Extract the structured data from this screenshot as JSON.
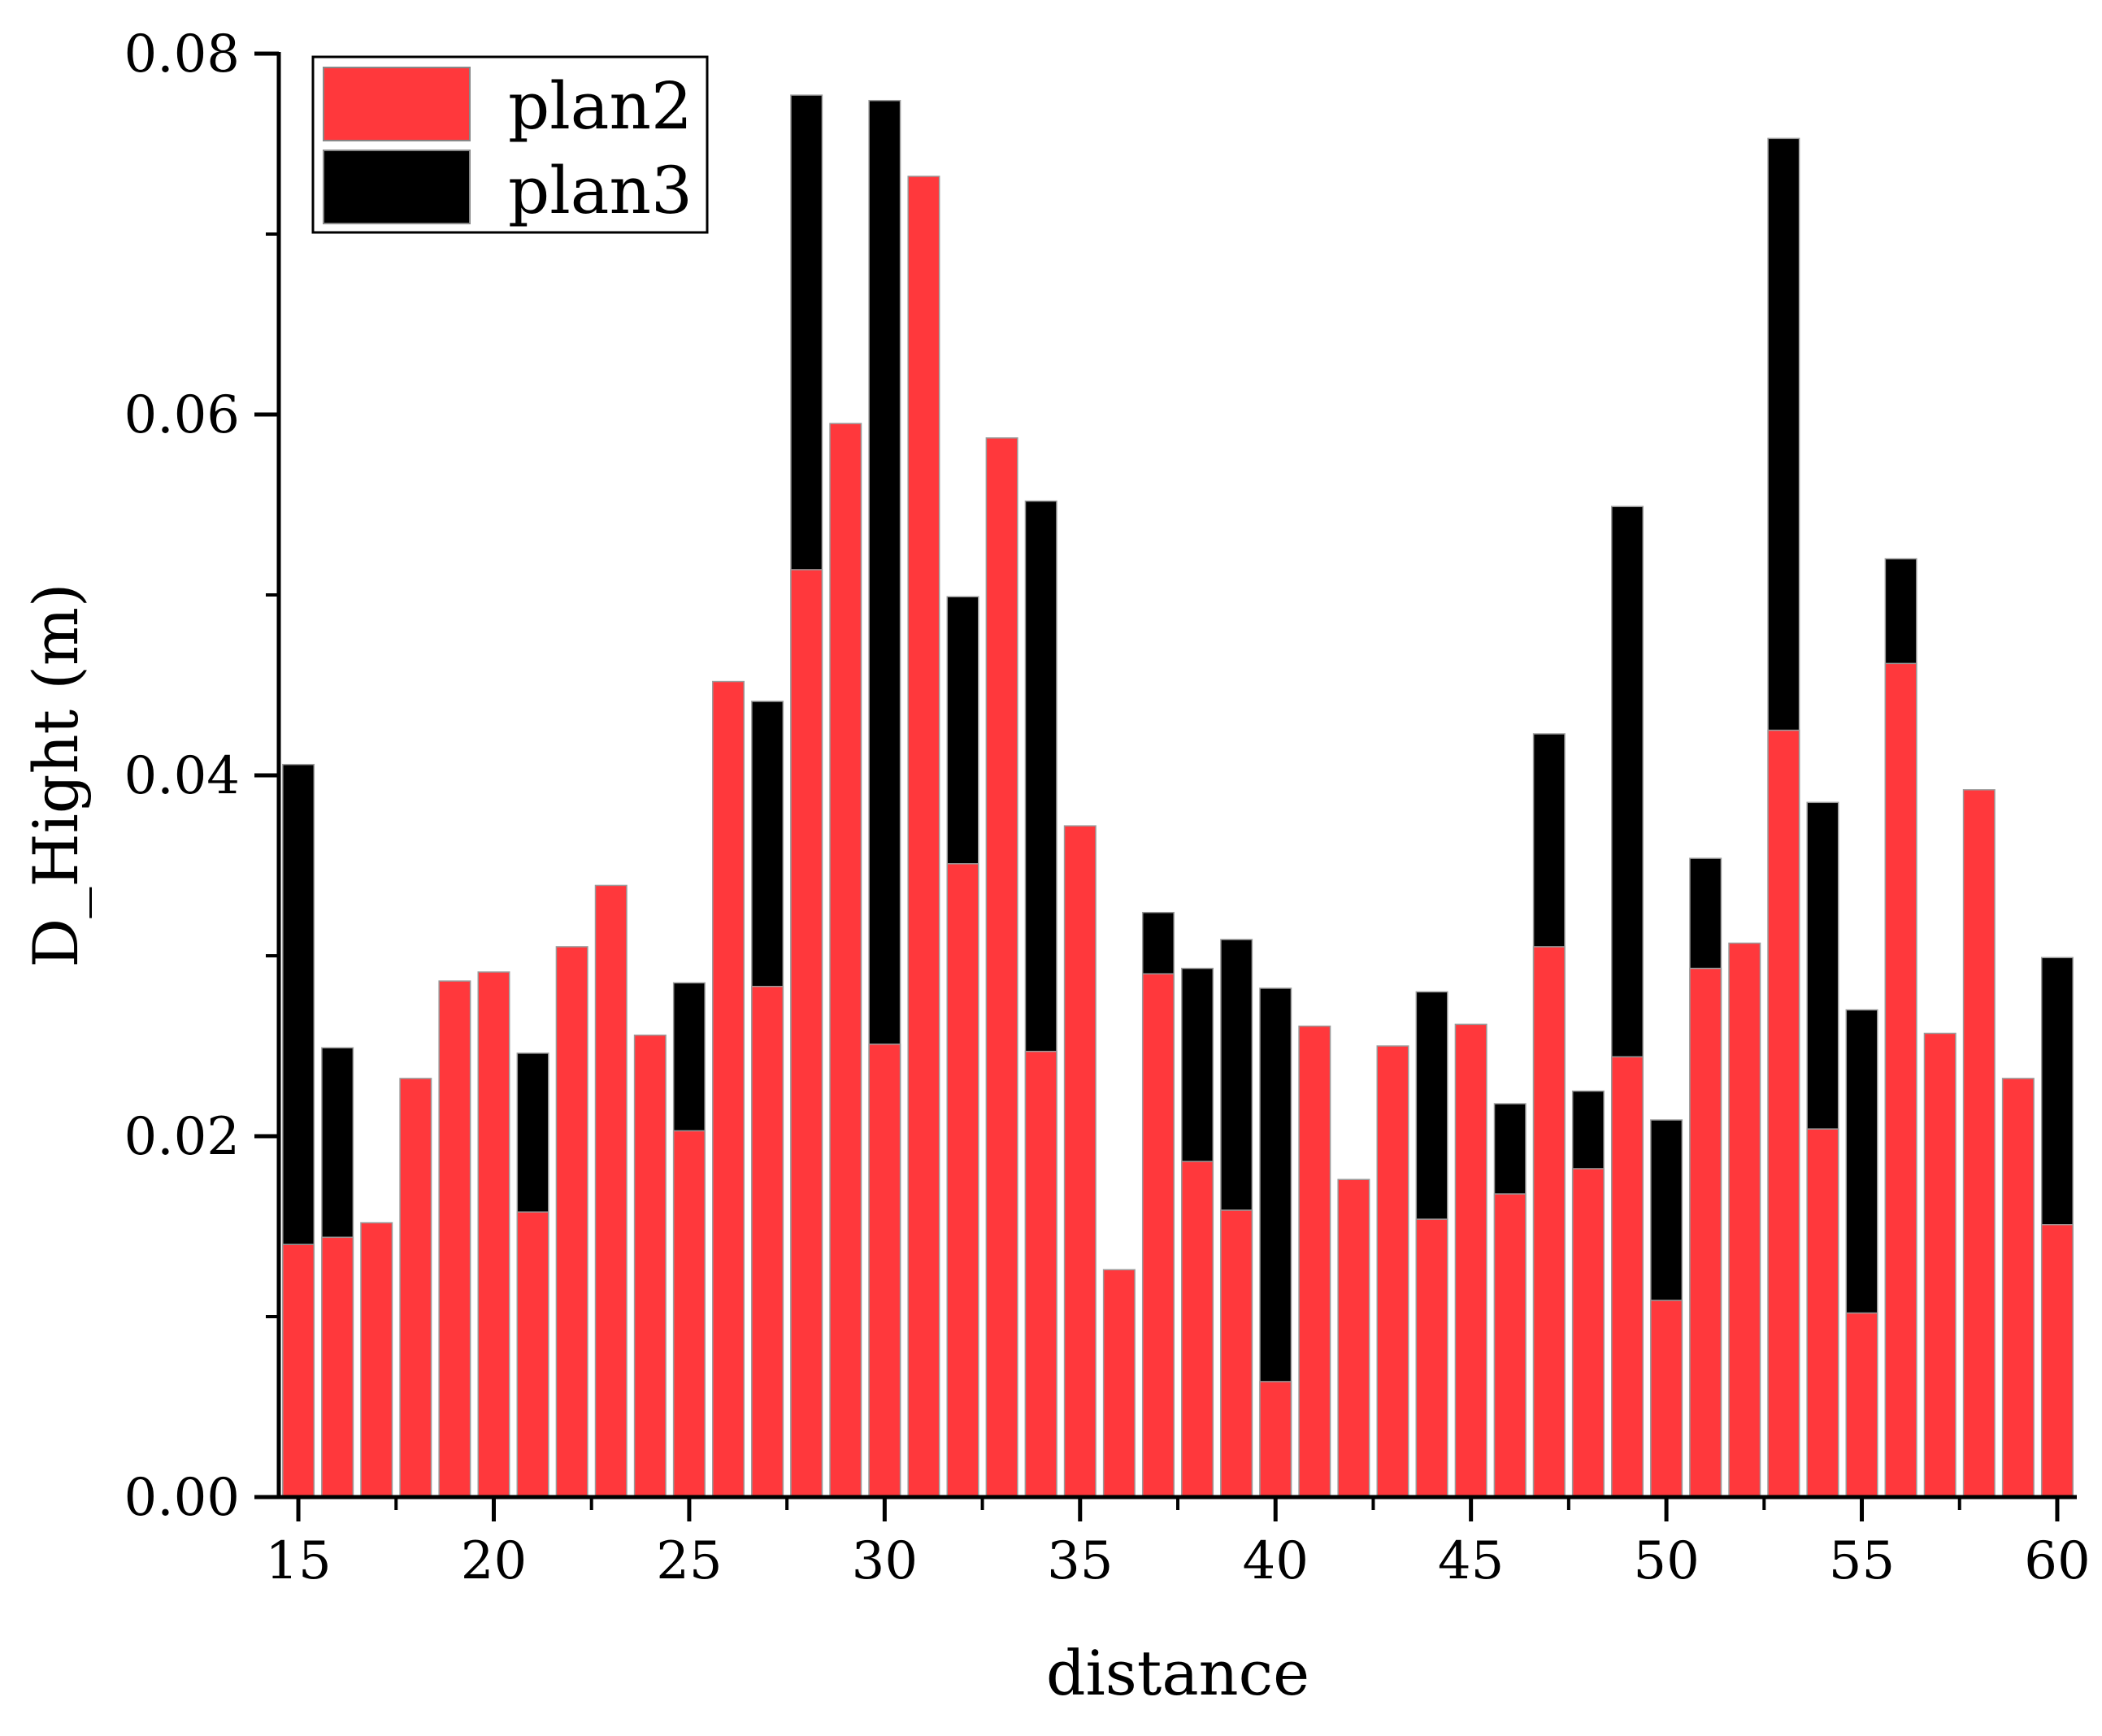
{
  "chart_data": {
    "type": "bar",
    "stacking": "overlay",
    "title": "",
    "xlabel": "distance",
    "ylabel": "D_Hight (m)",
    "x": [
      15,
      16,
      17,
      18,
      19,
      20,
      21,
      22,
      23,
      24,
      25,
      26,
      27,
      28,
      29,
      30,
      31,
      32,
      33,
      34,
      35,
      36,
      37,
      38,
      39,
      40,
      41,
      42,
      43,
      44,
      45,
      46,
      47,
      48,
      49,
      50,
      51,
      52,
      53,
      54,
      55,
      56,
      57,
      58,
      59,
      60
    ],
    "xlim": [
      14.5,
      60.5
    ],
    "ylim": [
      0,
      0.08
    ],
    "xticks": [
      "15",
      "20",
      "25",
      "30",
      "35",
      "40",
      "45",
      "50",
      "55",
      "60"
    ],
    "xtick_values": [
      15,
      20,
      25,
      30,
      35,
      40,
      45,
      50,
      55,
      60
    ],
    "yticks": [
      "0.00",
      "0.02",
      "0.04",
      "0.06",
      "0.08"
    ],
    "ytick_values": [
      0.0,
      0.02,
      0.04,
      0.06,
      0.08
    ],
    "grid": false,
    "legend_position": "top-left",
    "series": [
      {
        "name": "plan3",
        "color": "#000000",
        "values": [
          0.0406,
          0.0249,
          0.0,
          0.0,
          0.0,
          0.0,
          0.0246,
          0.0,
          0.0,
          0.0,
          0.0285,
          0.0,
          0.0441,
          0.0777,
          0.0,
          0.0774,
          0.0,
          0.0499,
          0.0,
          0.0552,
          0.0,
          0.0,
          0.0324,
          0.0293,
          0.0309,
          0.0282,
          0.0,
          0.0,
          0.0,
          0.028,
          0.0,
          0.0218,
          0.0423,
          0.0225,
          0.0549,
          0.0209,
          0.0354,
          0.0,
          0.0753,
          0.0385,
          0.027,
          0.052,
          0.0,
          0.0,
          0.0,
          0.0299
        ]
      },
      {
        "name": "plan2",
        "color": "#FF383C",
        "values": [
          0.014,
          0.0144,
          0.0152,
          0.0232,
          0.0286,
          0.0291,
          0.0158,
          0.0305,
          0.0339,
          0.0256,
          0.0203,
          0.0452,
          0.0283,
          0.0514,
          0.0595,
          0.0251,
          0.0732,
          0.0351,
          0.0587,
          0.0247,
          0.0372,
          0.0126,
          0.029,
          0.0186,
          0.0159,
          0.0064,
          0.0261,
          0.0176,
          0.025,
          0.0154,
          0.0262,
          0.0168,
          0.0305,
          0.0182,
          0.0244,
          0.0109,
          0.0293,
          0.0307,
          0.0425,
          0.0204,
          0.0102,
          0.0462,
          0.0257,
          0.0392,
          0.0232,
          0.0151
        ]
      }
    ],
    "legend": [
      {
        "label": "plan2",
        "color": "#FF383C"
      },
      {
        "label": "plan3",
        "color": "#000000"
      }
    ]
  }
}
